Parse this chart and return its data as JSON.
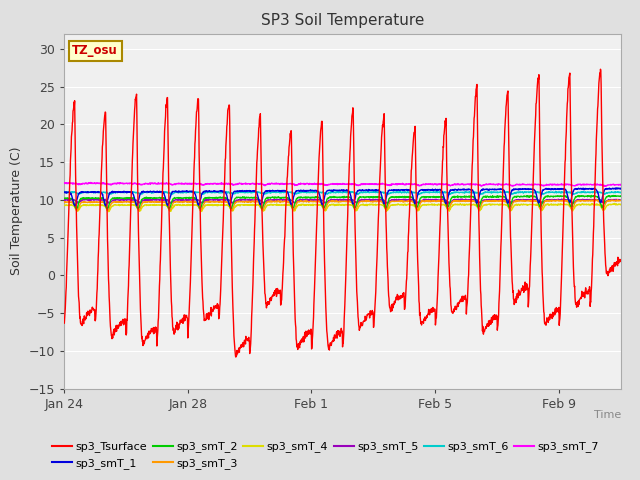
{
  "title": "SP3 Soil Temperature",
  "ylabel": "Soil Temperature (C)",
  "xlabel": "Time",
  "ylim": [
    -15,
    32
  ],
  "yticks": [
    -15,
    -10,
    -5,
    0,
    5,
    10,
    15,
    20,
    25,
    30
  ],
  "background_color": "#e0e0e0",
  "plot_bg_color": "#f0f0f0",
  "series_colors": {
    "sp3_Tsurface": "#ff0000",
    "sp3_smT_1": "#0000dd",
    "sp3_smT_2": "#00cc00",
    "sp3_smT_3": "#ff9900",
    "sp3_smT_4": "#dddd00",
    "sp3_smT_5": "#9900bb",
    "sp3_smT_6": "#00cccc",
    "sp3_smT_7": "#ff00ff"
  },
  "tz_label": "TZ_osu",
  "tz_bg": "#ffffcc",
  "tz_border": "#aa8800",
  "tz_text_color": "#cc0000",
  "grid_color": "#ffffff",
  "num_days": 18,
  "pts_per_day": 96,
  "surface_peaks": [
    23.0,
    21.5,
    24.0,
    23.5,
    23.5,
    23.0,
    21.0,
    19.0,
    20.5,
    22.0,
    21.0,
    19.5,
    20.5,
    25.0,
    24.5,
    26.5,
    26.5,
    27.5
  ],
  "surface_troughs": [
    -6.5,
    -8.0,
    -9.0,
    -7.5,
    -6.0,
    -10.5,
    -4.0,
    -9.5,
    -9.5,
    -7.0,
    -4.5,
    -6.5,
    -5.0,
    -7.5,
    -3.5,
    -6.5,
    -4.0,
    0.0
  ],
  "smT_bases": [
    11.0,
    10.2,
    9.7,
    9.3,
    10.0,
    11.0,
    12.2
  ],
  "smT_amps": [
    1.8,
    1.4,
    1.1,
    0.8,
    0.4,
    0.2,
    0.15
  ],
  "smT_phases": [
    0.35,
    0.4,
    0.42,
    0.44,
    0.46,
    0.48,
    0.5
  ],
  "tick_dates": [
    "Jan 24",
    "Jan 28",
    "Feb 1",
    "Feb 5",
    "Feb 9"
  ],
  "tick_day_offsets": [
    0,
    4,
    8,
    12,
    16
  ]
}
